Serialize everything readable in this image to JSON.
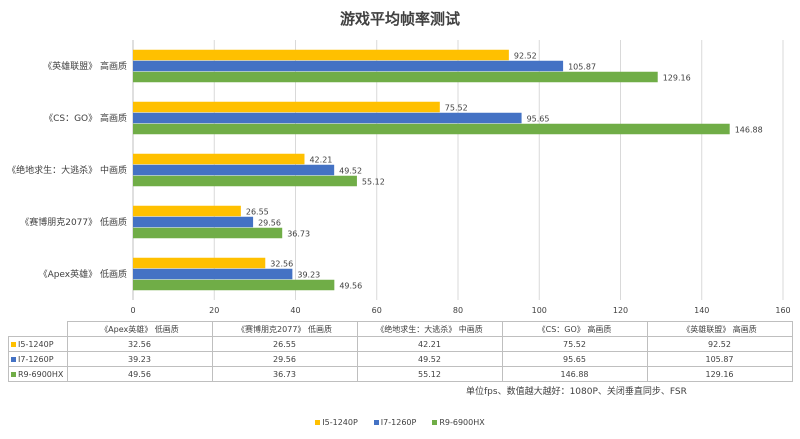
{
  "chart_data": {
    "type": "bar",
    "orientation": "horizontal",
    "title": "游戏平均帧率测试",
    "categories": [
      "《Apex英雄》 低画质",
      "《赛博朋克2077》 低画质",
      "《绝地求生：大逃杀》 中画质",
      "《CS：GO》 高画质",
      "《英雄联盟》 高画质"
    ],
    "series": [
      {
        "name": "I5-1240P",
        "color": "#FFC000",
        "values": [
          32.56,
          26.55,
          42.21,
          75.52,
          92.52
        ]
      },
      {
        "name": "I7-1260P",
        "color": "#4472C4",
        "values": [
          39.23,
          29.56,
          49.52,
          95.65,
          105.87
        ]
      },
      {
        "name": "R9-6900HX",
        "color": "#70AD47",
        "values": [
          49.56,
          36.73,
          55.12,
          146.88,
          129.16
        ]
      }
    ],
    "xlim": [
      0,
      160
    ],
    "xticks": [
      0,
      20,
      40,
      60,
      80,
      100,
      120,
      140,
      160
    ],
    "grid": "vertical",
    "legend_position": "bottom",
    "data_table": true,
    "note": "单位fps、数值越大越好：1080P、关闭垂直同步、FSR"
  }
}
